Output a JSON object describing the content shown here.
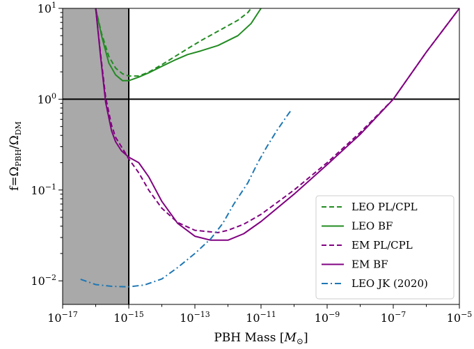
{
  "chart_data": {
    "type": "line",
    "xlabel": "PBH Mass [M⊙]",
    "ylabel": "f=Ω_PBH/Ω_DM",
    "xscale": "log",
    "yscale": "log",
    "xlim": [
      1e-17,
      1e-05
    ],
    "ylim": [
      0.0055,
      10
    ],
    "grid": false,
    "legend_position": "lower-right",
    "x_ticks": [
      {
        "value": 1e-17,
        "base": "10",
        "exp": "−17"
      },
      {
        "value": 1e-15,
        "base": "10",
        "exp": "−15"
      },
      {
        "value": 1e-13,
        "base": "10",
        "exp": "−13"
      },
      {
        "value": 1e-11,
        "base": "10",
        "exp": "−11"
      },
      {
        "value": 1e-09,
        "base": "10",
        "exp": "−9"
      },
      {
        "value": 1e-07,
        "base": "10",
        "exp": "−7"
      },
      {
        "value": 1e-05,
        "base": "10",
        "exp": "−5"
      }
    ],
    "y_ticks": [
      {
        "value": 10,
        "base": "10",
        "exp": "1"
      },
      {
        "value": 1,
        "base": "10",
        "exp": "0"
      },
      {
        "value": 0.1,
        "base": "10",
        "exp": "−1"
      },
      {
        "value": 0.01,
        "base": "10",
        "exp": "−2"
      }
    ],
    "shaded_region": {
      "x": [
        1e-17,
        1e-15
      ],
      "color": "#a9a9a9"
    },
    "reference_lines": [
      {
        "orientation": "horizontal",
        "value": 1,
        "color": "#000000"
      },
      {
        "orientation": "vertical",
        "value": 1e-15,
        "color": "#000000"
      }
    ],
    "series": [
      {
        "name": "LEO PL/CPL",
        "color": "#228b22",
        "style": "dashed",
        "points": [
          [
            1e-16,
            10
          ],
          [
            1.5e-16,
            5.3
          ],
          [
            2.5e-16,
            2.95
          ],
          [
            4e-16,
            2.2
          ],
          [
            6.5e-16,
            1.9
          ],
          [
            1e-15,
            1.8
          ],
          [
            2e-15,
            1.8
          ],
          [
            4e-15,
            1.98
          ],
          [
            1e-14,
            2.4
          ],
          [
            2.5e-14,
            2.95
          ],
          [
            6e-14,
            3.6
          ],
          [
            1.5e-13,
            4.4
          ],
          [
            5e-13,
            5.6
          ],
          [
            2e-12,
            7.4
          ],
          [
            4e-12,
            9.0
          ],
          [
            5e-12,
            10
          ]
        ]
      },
      {
        "name": "LEO BF",
        "color": "#228b22",
        "style": "solid",
        "points": [
          [
            1e-16,
            10
          ],
          [
            1.5e-16,
            5.0
          ],
          [
            2.5e-16,
            2.5
          ],
          [
            4e-16,
            1.85
          ],
          [
            6.5e-16,
            1.6
          ],
          [
            1e-15,
            1.6
          ],
          [
            2e-15,
            1.75
          ],
          [
            4e-15,
            1.95
          ],
          [
            1e-14,
            2.3
          ],
          [
            2.5e-14,
            2.7
          ],
          [
            6e-14,
            3.1
          ],
          [
            1.5e-13,
            3.4
          ],
          [
            5e-13,
            3.9
          ],
          [
            2e-12,
            5.0
          ],
          [
            5e-12,
            6.8
          ],
          [
            1e-11,
            10
          ]
        ]
      },
      {
        "name": "EM PL/CPL",
        "color": "#800080",
        "style": "dashed",
        "points": [
          [
            1e-16,
            10
          ],
          [
            1.4e-16,
            3.2
          ],
          [
            2e-16,
            1.05
          ],
          [
            3e-16,
            0.52
          ],
          [
            4e-16,
            0.38
          ],
          [
            6e-16,
            0.3
          ],
          [
            1e-15,
            0.22
          ],
          [
            2e-15,
            0.155
          ],
          [
            4e-15,
            0.1
          ],
          [
            1e-14,
            0.063
          ],
          [
            3e-14,
            0.044
          ],
          [
            1e-13,
            0.036
          ],
          [
            5e-13,
            0.034
          ],
          [
            1e-12,
            0.036
          ],
          [
            3e-12,
            0.042
          ],
          [
            1e-11,
            0.054
          ],
          [
            1e-10,
            0.1
          ],
          [
            1e-09,
            0.2
          ],
          [
            1e-08,
            0.43
          ],
          [
            1e-07,
            1.0
          ],
          [
            1e-06,
            3.3
          ],
          [
            1e-05,
            10
          ]
        ]
      },
      {
        "name": "EM BF",
        "color": "#800080",
        "style": "solid",
        "points": [
          [
            1e-16,
            10
          ],
          [
            1.4e-16,
            3.0
          ],
          [
            2e-16,
            0.92
          ],
          [
            3e-16,
            0.45
          ],
          [
            4e-16,
            0.34
          ],
          [
            6e-16,
            0.27
          ],
          [
            1e-15,
            0.23
          ],
          [
            2e-15,
            0.2
          ],
          [
            4e-15,
            0.14
          ],
          [
            1e-14,
            0.075
          ],
          [
            3e-14,
            0.043
          ],
          [
            1e-13,
            0.031
          ],
          [
            3e-13,
            0.028
          ],
          [
            1e-12,
            0.028
          ],
          [
            3e-12,
            0.033
          ],
          [
            1e-11,
            0.045
          ],
          [
            1e-10,
            0.09
          ],
          [
            1e-09,
            0.19
          ],
          [
            1e-08,
            0.41
          ],
          [
            1e-07,
            1.0
          ],
          [
            1e-06,
            3.3
          ],
          [
            1e-05,
            10
          ]
        ]
      },
      {
        "name": "LEO JK (2020)",
        "color": "#1f77b4",
        "style": "dashdot",
        "points": [
          [
            3.5e-17,
            0.0104
          ],
          [
            1e-16,
            0.0091
          ],
          [
            3e-16,
            0.0087
          ],
          [
            1e-15,
            0.0086
          ],
          [
            3e-15,
            0.009
          ],
          [
            1e-14,
            0.0105
          ],
          [
            3e-14,
            0.014
          ],
          [
            1e-13,
            0.02
          ],
          [
            3e-13,
            0.029
          ],
          [
            7e-13,
            0.043
          ],
          [
            1.5e-12,
            0.07
          ],
          [
            4e-12,
            0.12
          ],
          [
            8e-12,
            0.2
          ],
          [
            1.5e-11,
            0.3
          ],
          [
            3e-11,
            0.45
          ],
          [
            6e-11,
            0.65
          ],
          [
            8e-11,
            0.75
          ]
        ]
      }
    ]
  }
}
